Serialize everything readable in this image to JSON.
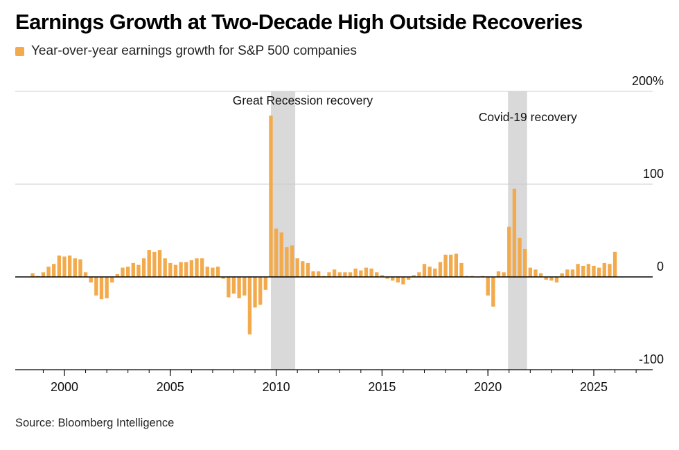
{
  "header": {
    "title": "Earnings Growth at Two-Decade High Outside Recoveries",
    "legend_label": "Year-over-year earnings growth for S&P 500 companies"
  },
  "footer": {
    "source": "Source: Bloomberg Intelligence"
  },
  "colors": {
    "bar": "#F2AA4C",
    "shade": "#D9D9D9",
    "grid": "#CCCCCC",
    "axis": "#000000"
  },
  "chart_data": {
    "type": "bar",
    "title": "Earnings Growth at Two-Decade High Outside Recoveries",
    "xlabel": "",
    "ylabel": "",
    "xlim": [
      1998.0,
      2027.5
    ],
    "ylim": [
      -100,
      200
    ],
    "grid": true,
    "y_axis_side": "right",
    "yticks": [
      {
        "value": 200,
        "label": "200%"
      },
      {
        "value": 100,
        "label": "100"
      },
      {
        "value": 0,
        "label": "0"
      },
      {
        "value": -100,
        "label": "-100"
      }
    ],
    "xticks": [
      {
        "value": 2000,
        "label": "2000"
      },
      {
        "value": 2005,
        "label": "2005"
      },
      {
        "value": 2010,
        "label": "2010"
      },
      {
        "value": 2015,
        "label": "2015"
      },
      {
        "value": 2020,
        "label": "2020"
      },
      {
        "value": 2025,
        "label": "2025"
      }
    ],
    "shaded_regions": [
      {
        "x0": 2009.75,
        "x1": 2010.9,
        "label": "Great Recession recovery"
      },
      {
        "x0": 2020.95,
        "x1": 2021.85,
        "label": "Covid-19 recovery"
      }
    ],
    "series": [
      {
        "name": "Year-over-year earnings growth for S&P 500 companies",
        "x": [
          1998.5,
          1998.75,
          1999.0,
          1999.25,
          1999.5,
          1999.75,
          2000.0,
          2000.25,
          2000.5,
          2000.75,
          2001.0,
          2001.25,
          2001.5,
          2001.75,
          2002.0,
          2002.25,
          2002.5,
          2002.75,
          2003.0,
          2003.25,
          2003.5,
          2003.75,
          2004.0,
          2004.25,
          2004.5,
          2004.75,
          2005.0,
          2005.25,
          2005.5,
          2005.75,
          2006.0,
          2006.25,
          2006.5,
          2006.75,
          2007.0,
          2007.25,
          2007.5,
          2007.75,
          2008.0,
          2008.25,
          2008.5,
          2008.75,
          2009.0,
          2009.25,
          2009.5,
          2009.75,
          2010.0,
          2010.25,
          2010.5,
          2010.75,
          2011.0,
          2011.25,
          2011.5,
          2011.75,
          2012.0,
          2012.25,
          2012.5,
          2012.75,
          2013.0,
          2013.25,
          2013.5,
          2013.75,
          2014.0,
          2014.25,
          2014.5,
          2014.75,
          2015.0,
          2015.25,
          2015.5,
          2015.75,
          2016.0,
          2016.25,
          2016.5,
          2016.75,
          2017.0,
          2017.25,
          2017.5,
          2017.75,
          2018.0,
          2018.25,
          2018.5,
          2018.75,
          2019.0,
          2019.25,
          2019.5,
          2019.75,
          2020.0,
          2020.25,
          2020.5,
          2020.75,
          2021.0,
          2021.25,
          2021.5,
          2021.75,
          2022.0,
          2022.25,
          2022.5,
          2022.75,
          2023.0,
          2023.25,
          2023.5,
          2023.75,
          2024.0,
          2024.25,
          2024.5,
          2024.75,
          2025.0,
          2025.25,
          2025.5,
          2025.75,
          2026.0
        ],
        "values": [
          4,
          1,
          5,
          11,
          14,
          23,
          22,
          23,
          20,
          19,
          5,
          -6,
          -20,
          -24,
          -23,
          -6,
          3,
          10,
          11,
          15,
          13,
          20,
          29,
          27,
          29,
          20,
          15,
          13,
          16,
          16,
          18,
          20,
          20,
          11,
          10,
          11,
          -2,
          -22,
          -18,
          -23,
          -20,
          -62,
          -33,
          -30,
          -14,
          174,
          52,
          48,
          32,
          34,
          20,
          17,
          15,
          6,
          6,
          1,
          5,
          8,
          5,
          5,
          5,
          9,
          7,
          10,
          9,
          5,
          2,
          -2,
          -4,
          -6,
          -8,
          -3,
          2,
          5,
          14,
          11,
          9,
          16,
          24,
          24,
          25,
          15,
          1,
          1,
          0,
          1,
          -20,
          -32,
          6,
          5,
          54,
          95,
          42,
          30,
          10,
          8,
          4,
          -3,
          -4,
          -6,
          4,
          8,
          8,
          14,
          12,
          14,
          12,
          10,
          15,
          14,
          27
        ]
      }
    ]
  }
}
